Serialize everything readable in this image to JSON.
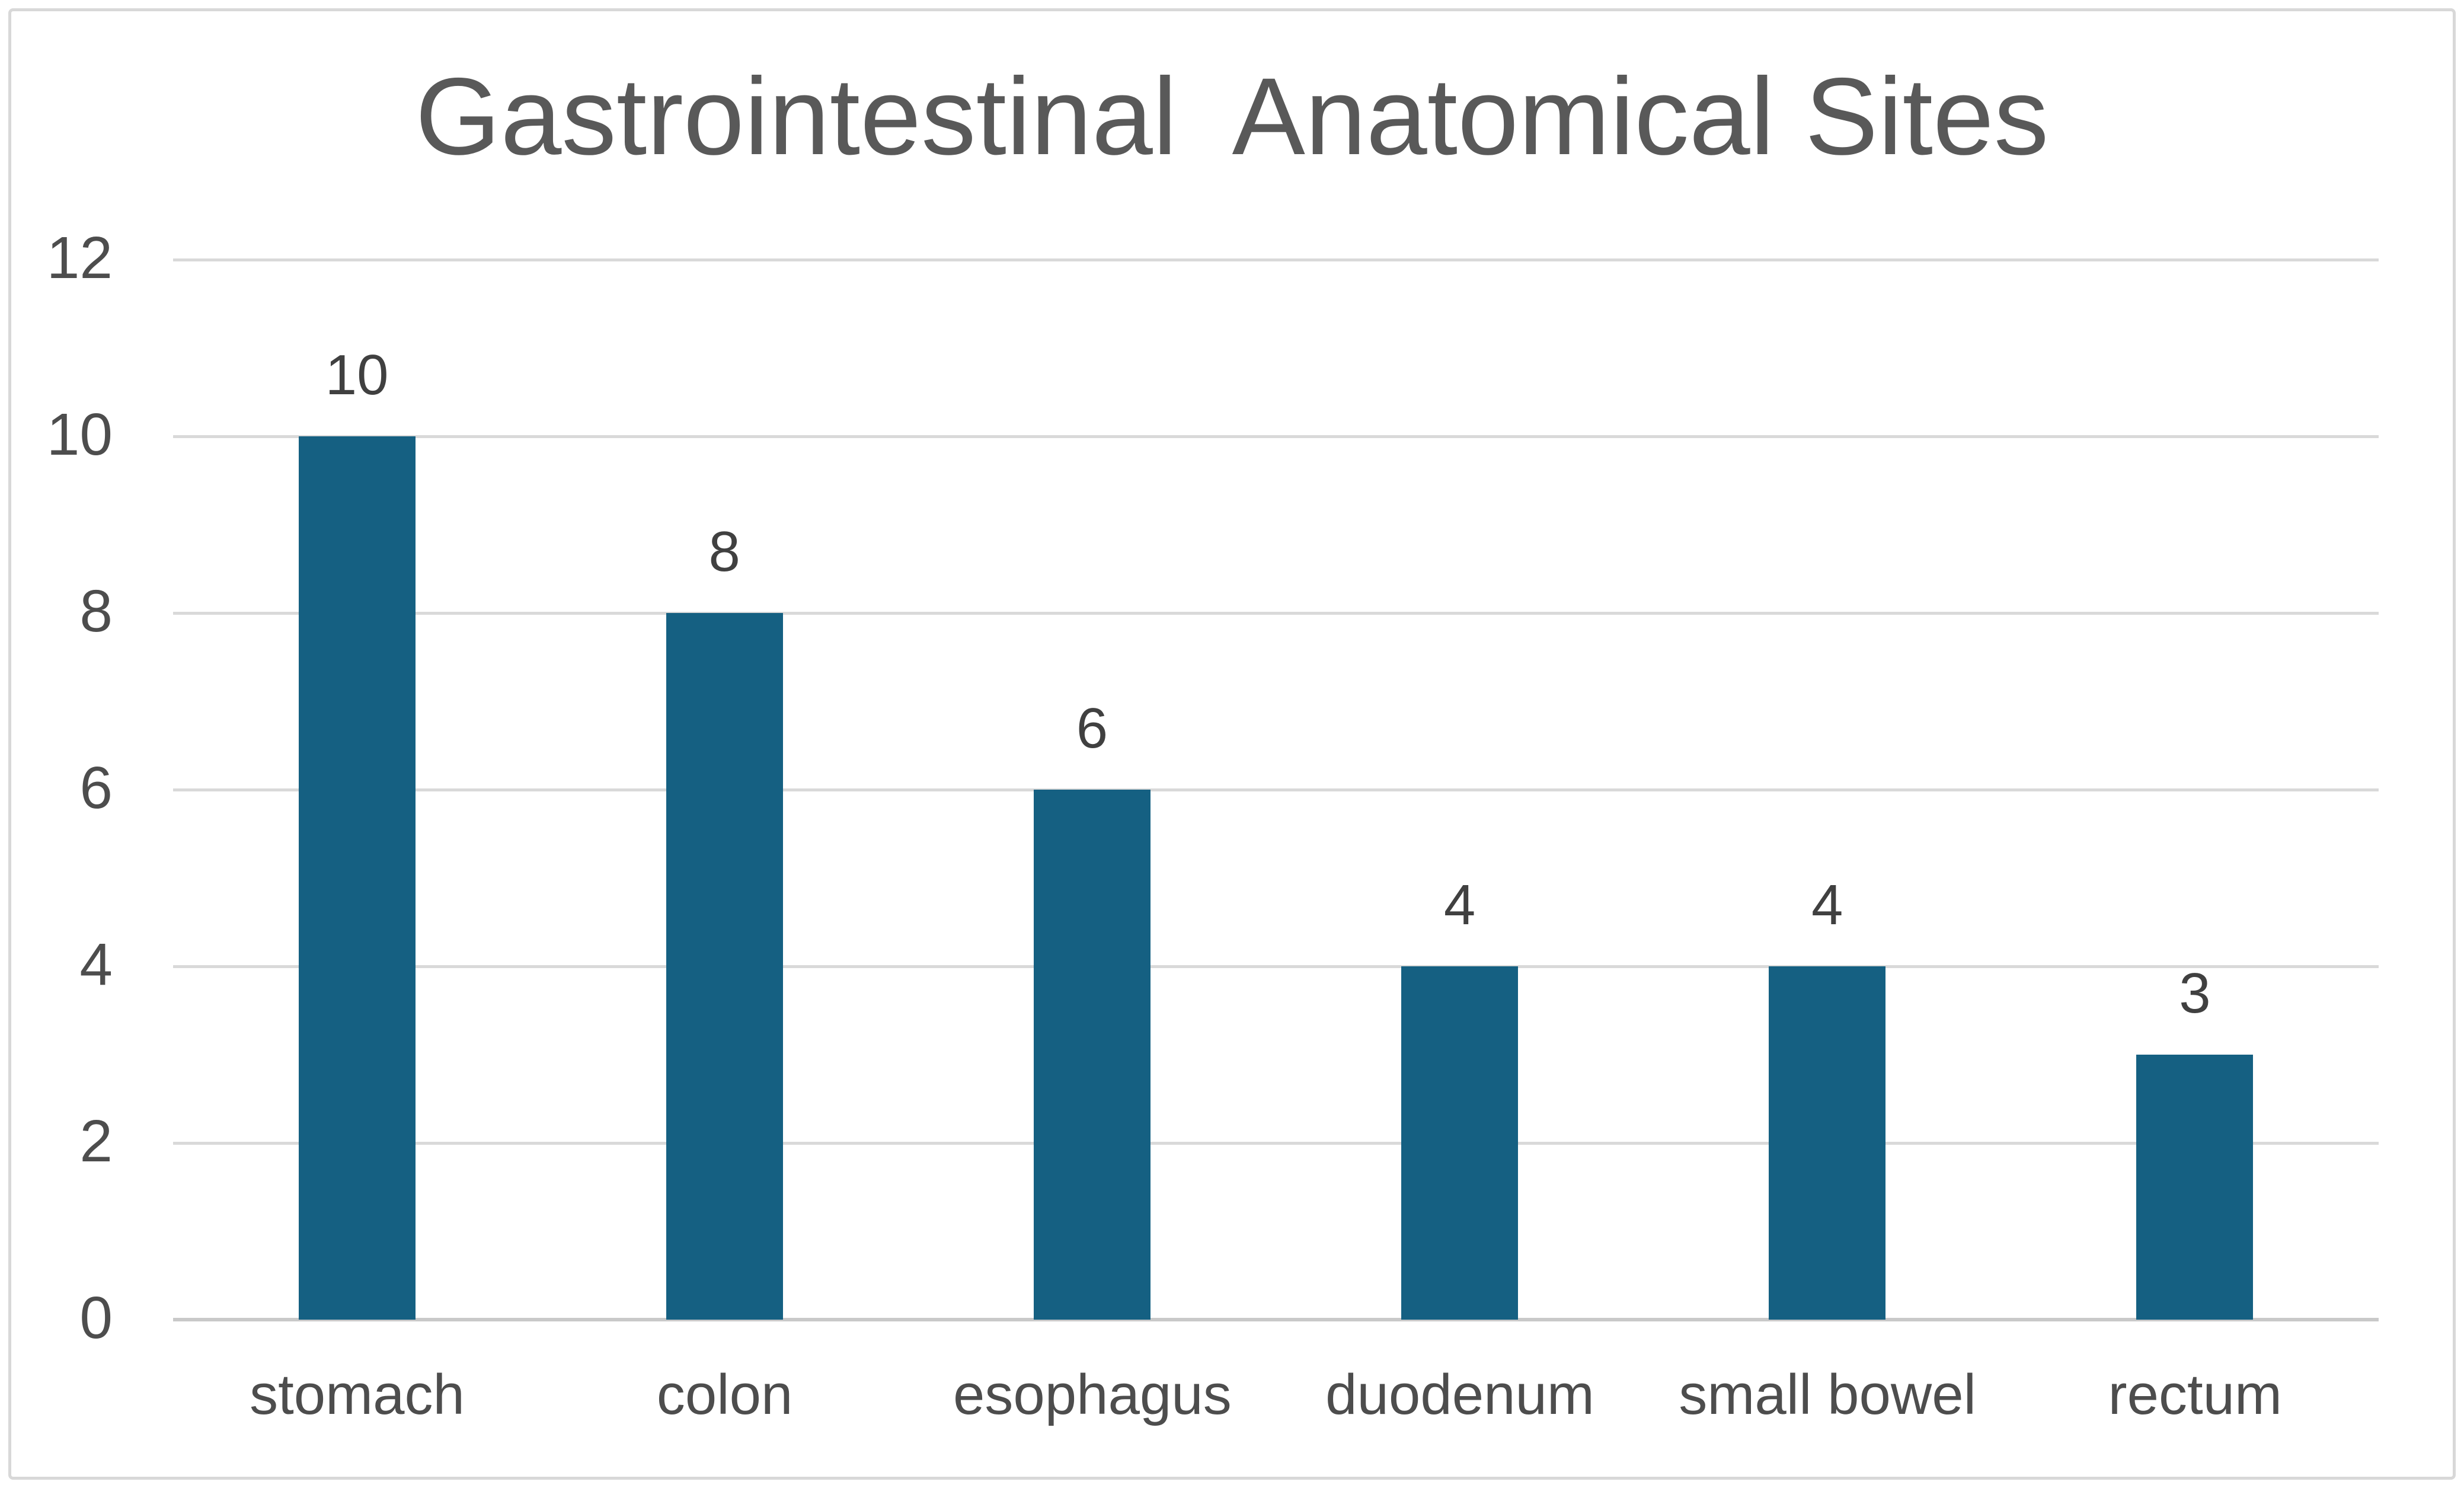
{
  "chart_data": {
    "type": "bar",
    "title": "Gastrointestinal  Anatomical Sites",
    "categories": [
      "stomach",
      "colon",
      "esophagus",
      "duodenum",
      "small bowel",
      "rectum"
    ],
    "values": [
      10,
      8,
      6,
      4,
      4,
      3
    ],
    "data_labels": [
      "10",
      "8",
      "6",
      "4",
      "4",
      "3"
    ],
    "xlabel": "",
    "ylabel": "",
    "ylim": [
      0,
      12
    ],
    "y_tick_values": [
      0,
      2,
      4,
      6,
      8,
      10,
      12
    ],
    "y_tick_labels": [
      "0",
      "2",
      "4",
      "6",
      "8",
      "10",
      "12"
    ],
    "grid": "horizontal-major",
    "legend": "none",
    "data_labels_shown": true,
    "colors": {
      "bar": "#156082",
      "gridline": "#D9D9D9",
      "axis_line": "#C9C9C9",
      "title_text": "#595959",
      "tick_label_text": "#4D4D4D",
      "data_label_text": "#404040",
      "category_label_text": "#4D4D4D",
      "frame_border": "#D8D8D8",
      "background": "#FFFFFF"
    }
  }
}
